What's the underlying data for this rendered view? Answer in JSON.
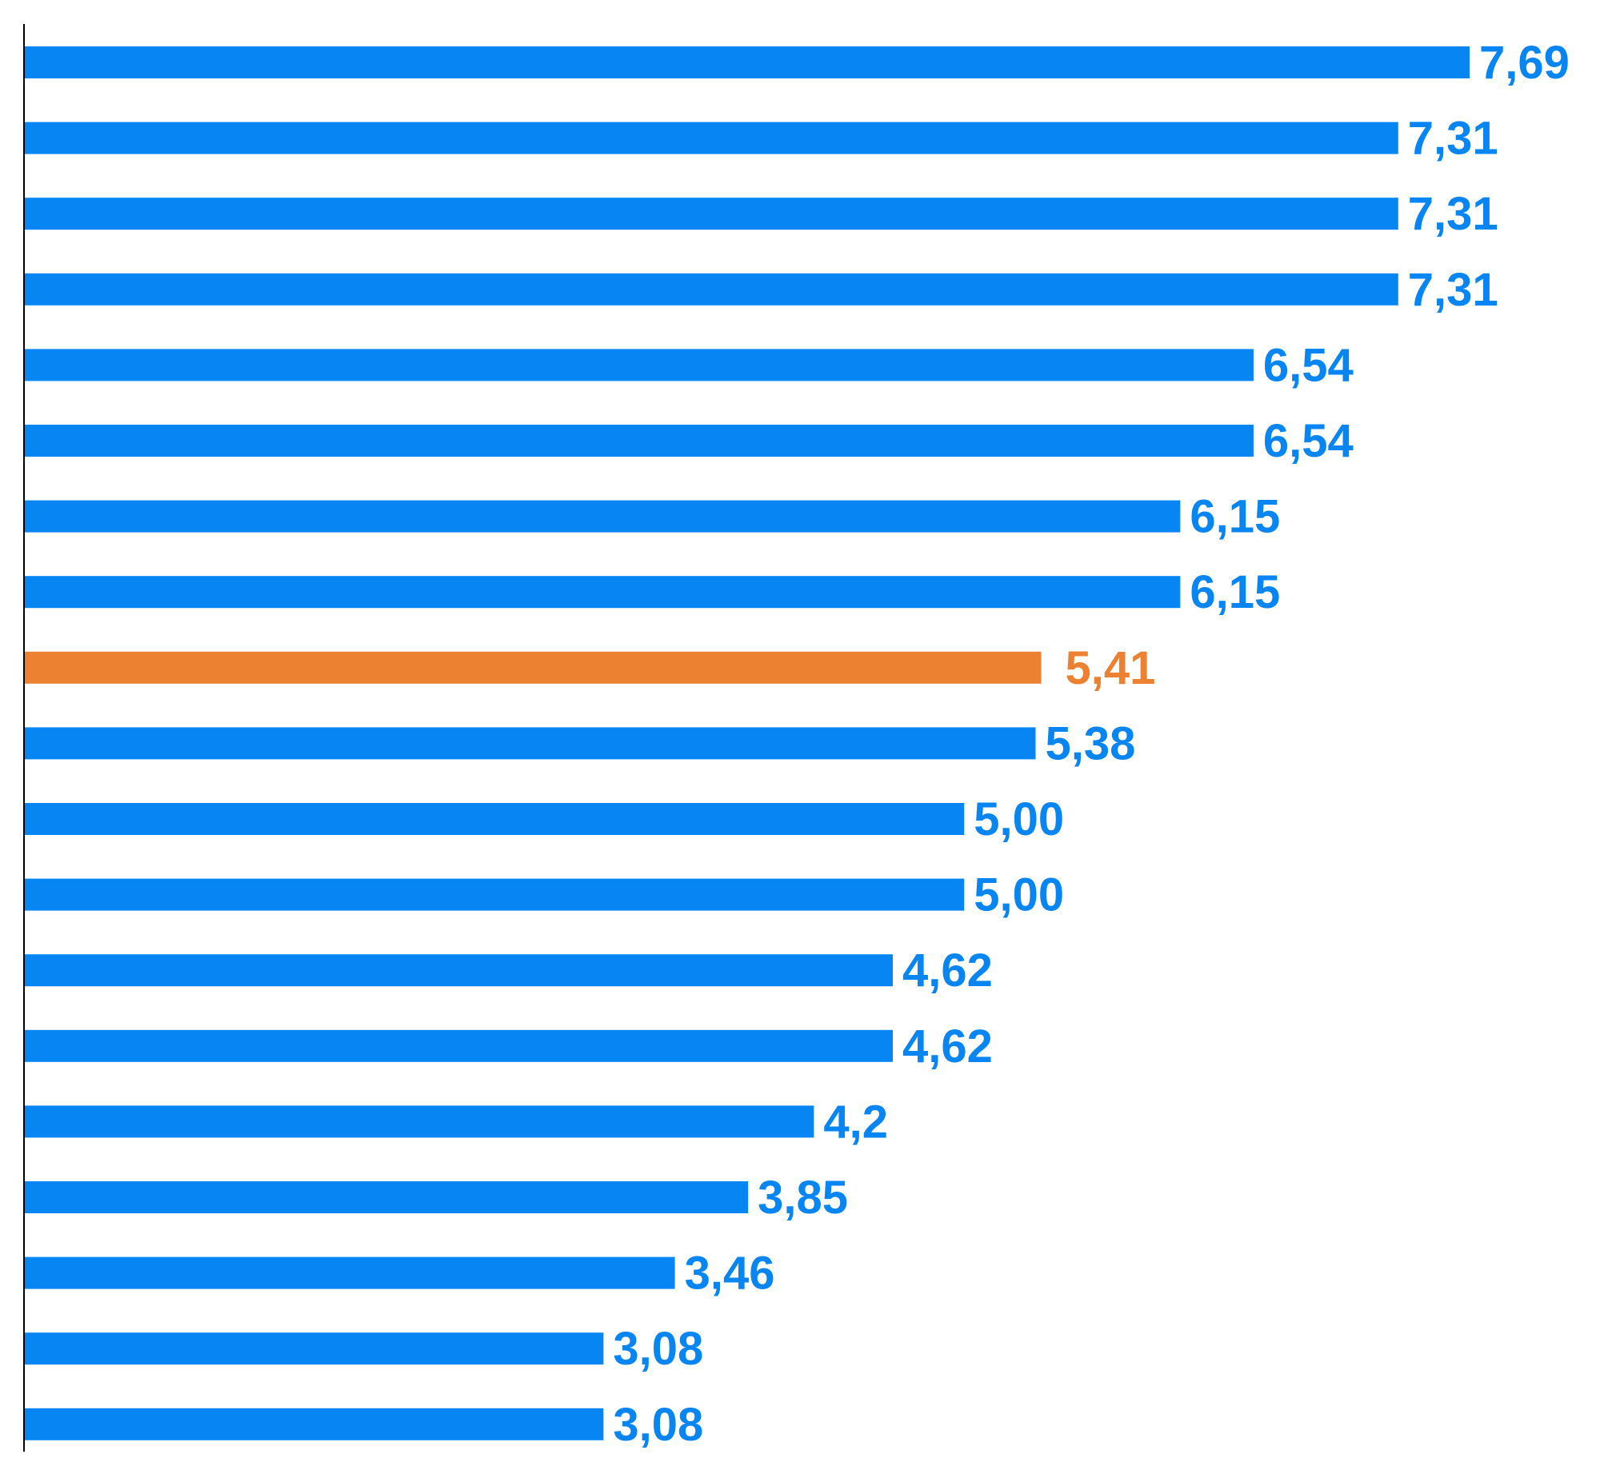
{
  "chart_data": {
    "type": "bar",
    "orientation": "horizontal",
    "title": "",
    "xlabel": "",
    "ylabel": "",
    "xlim": [
      0,
      7.69
    ],
    "grid": false,
    "legend": "none",
    "colors": {
      "default": "#0785F2",
      "highlight": "#ED8132"
    },
    "values": [
      7.69,
      7.31,
      7.31,
      7.31,
      6.54,
      6.54,
      6.15,
      6.15,
      5.41,
      5.38,
      5.0,
      5.0,
      4.62,
      4.62,
      4.2,
      3.85,
      3.46,
      3.08,
      3.08
    ],
    "labels": [
      "7,69",
      "7,31",
      "7,31",
      "7,31",
      "6,54",
      "6,54",
      "6,15",
      "6,15",
      "5,41",
      "5,38",
      "5,00",
      "5,00",
      "4,62",
      "4,62",
      "4,2",
      "3,85",
      "3,46",
      "3,08",
      "3,08"
    ],
    "highlight_index": 8
  }
}
